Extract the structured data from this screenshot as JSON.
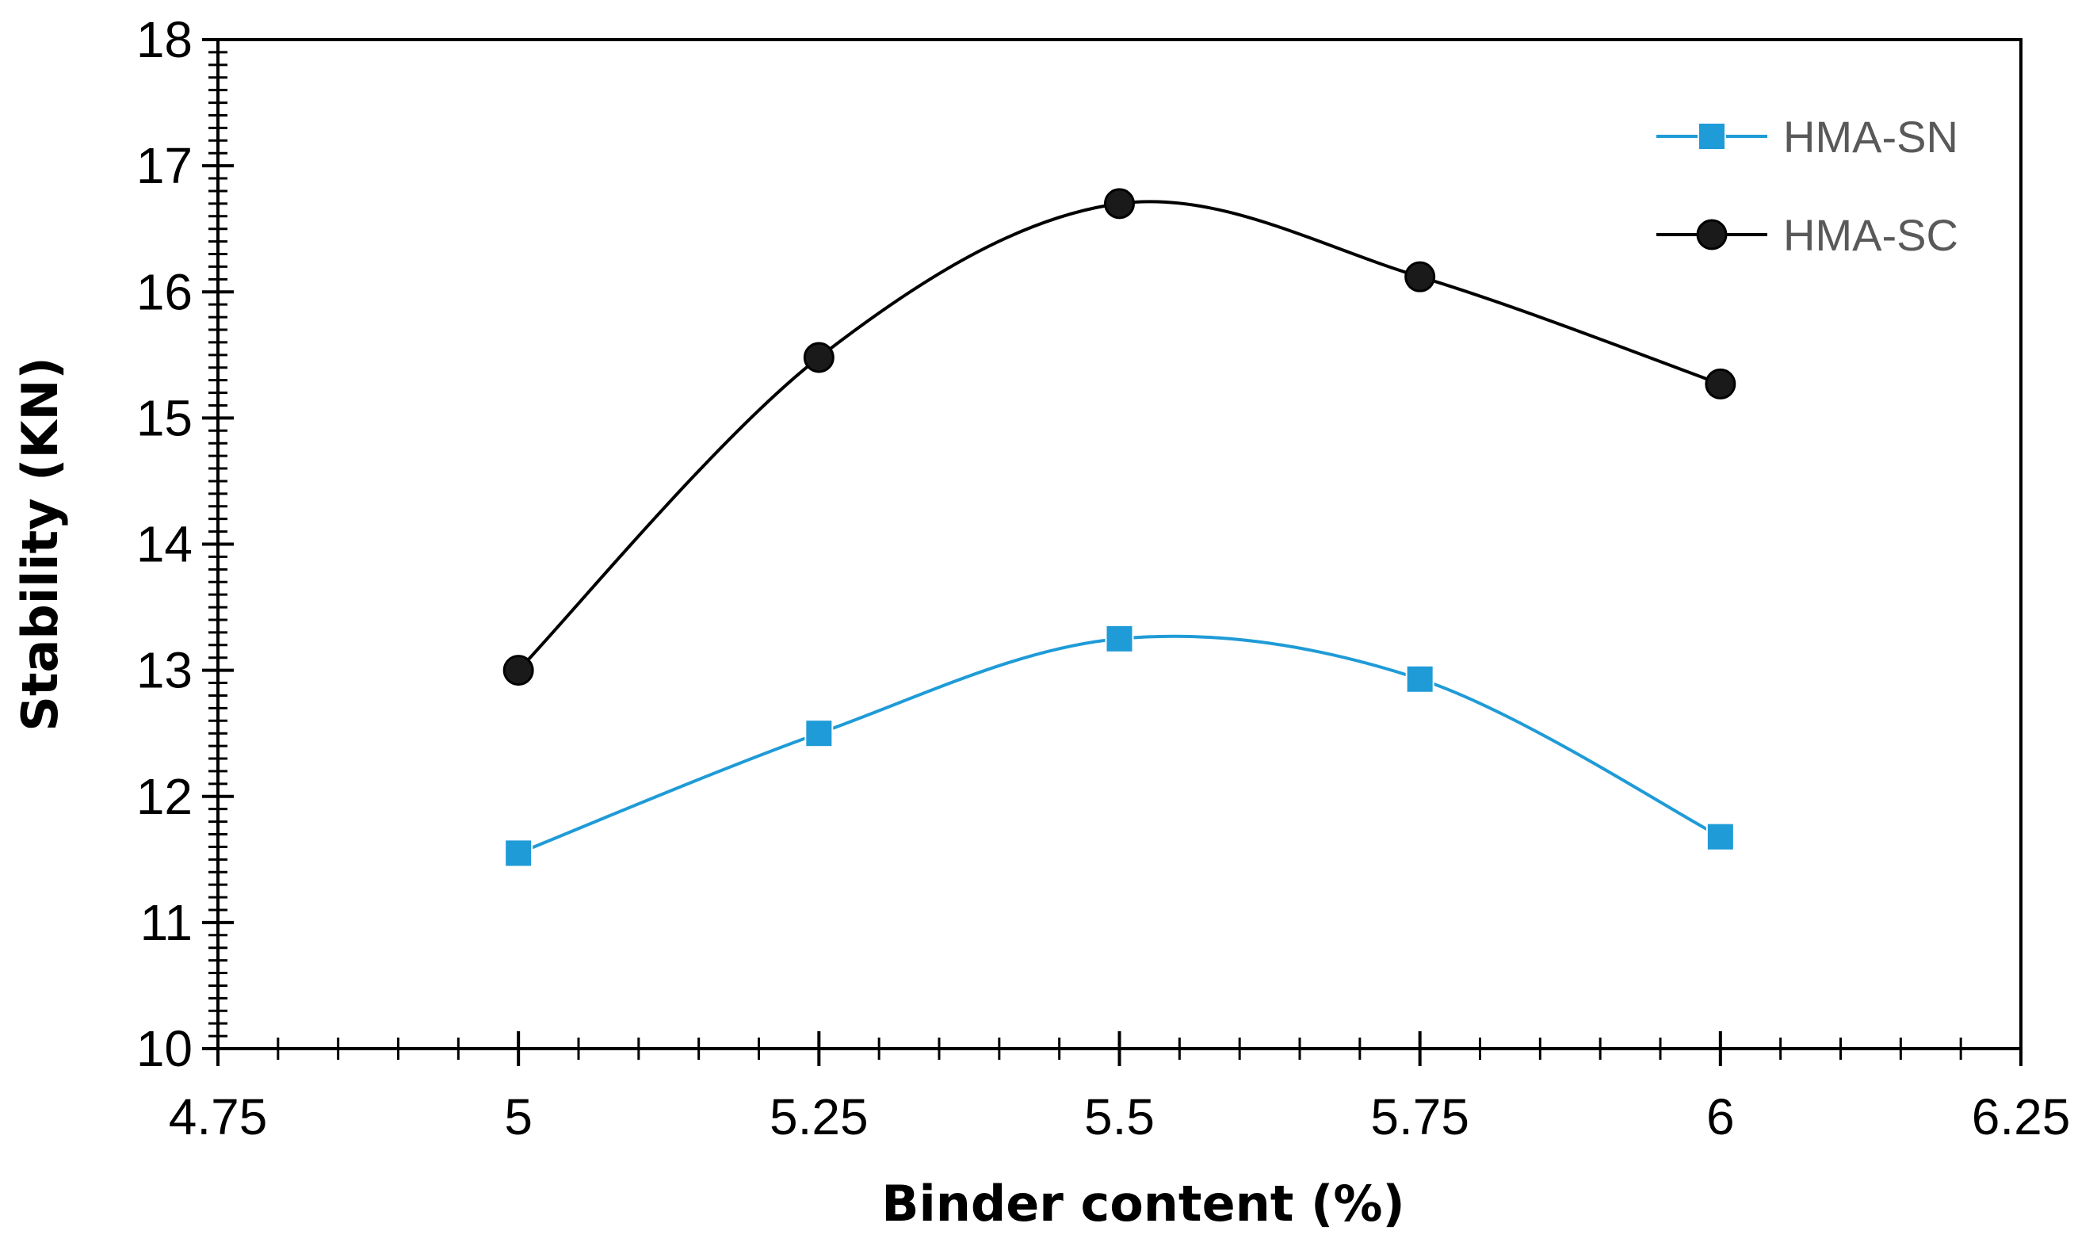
{
  "chart_data": {
    "type": "line",
    "xlabel": "Binder content (%)",
    "ylabel": "Stability (KN)",
    "xlim": [
      4.75,
      6.25
    ],
    "ylim": [
      10,
      18
    ],
    "x_ticks": [
      4.75,
      5,
      5.25,
      5.5,
      5.75,
      6,
      6.25
    ],
    "x_tick_labels": [
      "4.75",
      "5",
      "5.25",
      "5.5",
      "5.75",
      "6",
      "6.25"
    ],
    "y_ticks": [
      10,
      11,
      12,
      13,
      14,
      15,
      16,
      17,
      18
    ],
    "y_tick_labels": [
      "10",
      "11",
      "12",
      "13",
      "14",
      "15",
      "16",
      "17",
      "18"
    ],
    "smooth": true,
    "grid": false,
    "legend_position": "top-right",
    "x": [
      5,
      5.25,
      5.5,
      5.75,
      6
    ],
    "series": [
      {
        "name": "HMA-SN",
        "values": [
          11.55,
          12.5,
          13.25,
          12.93,
          11.68
        ],
        "color": "#1f9bd7",
        "marker": "square"
      },
      {
        "name": "HMA-SC",
        "values": [
          13.0,
          15.48,
          16.7,
          16.12,
          15.27
        ],
        "color": "#000000",
        "marker": "circle"
      }
    ]
  }
}
